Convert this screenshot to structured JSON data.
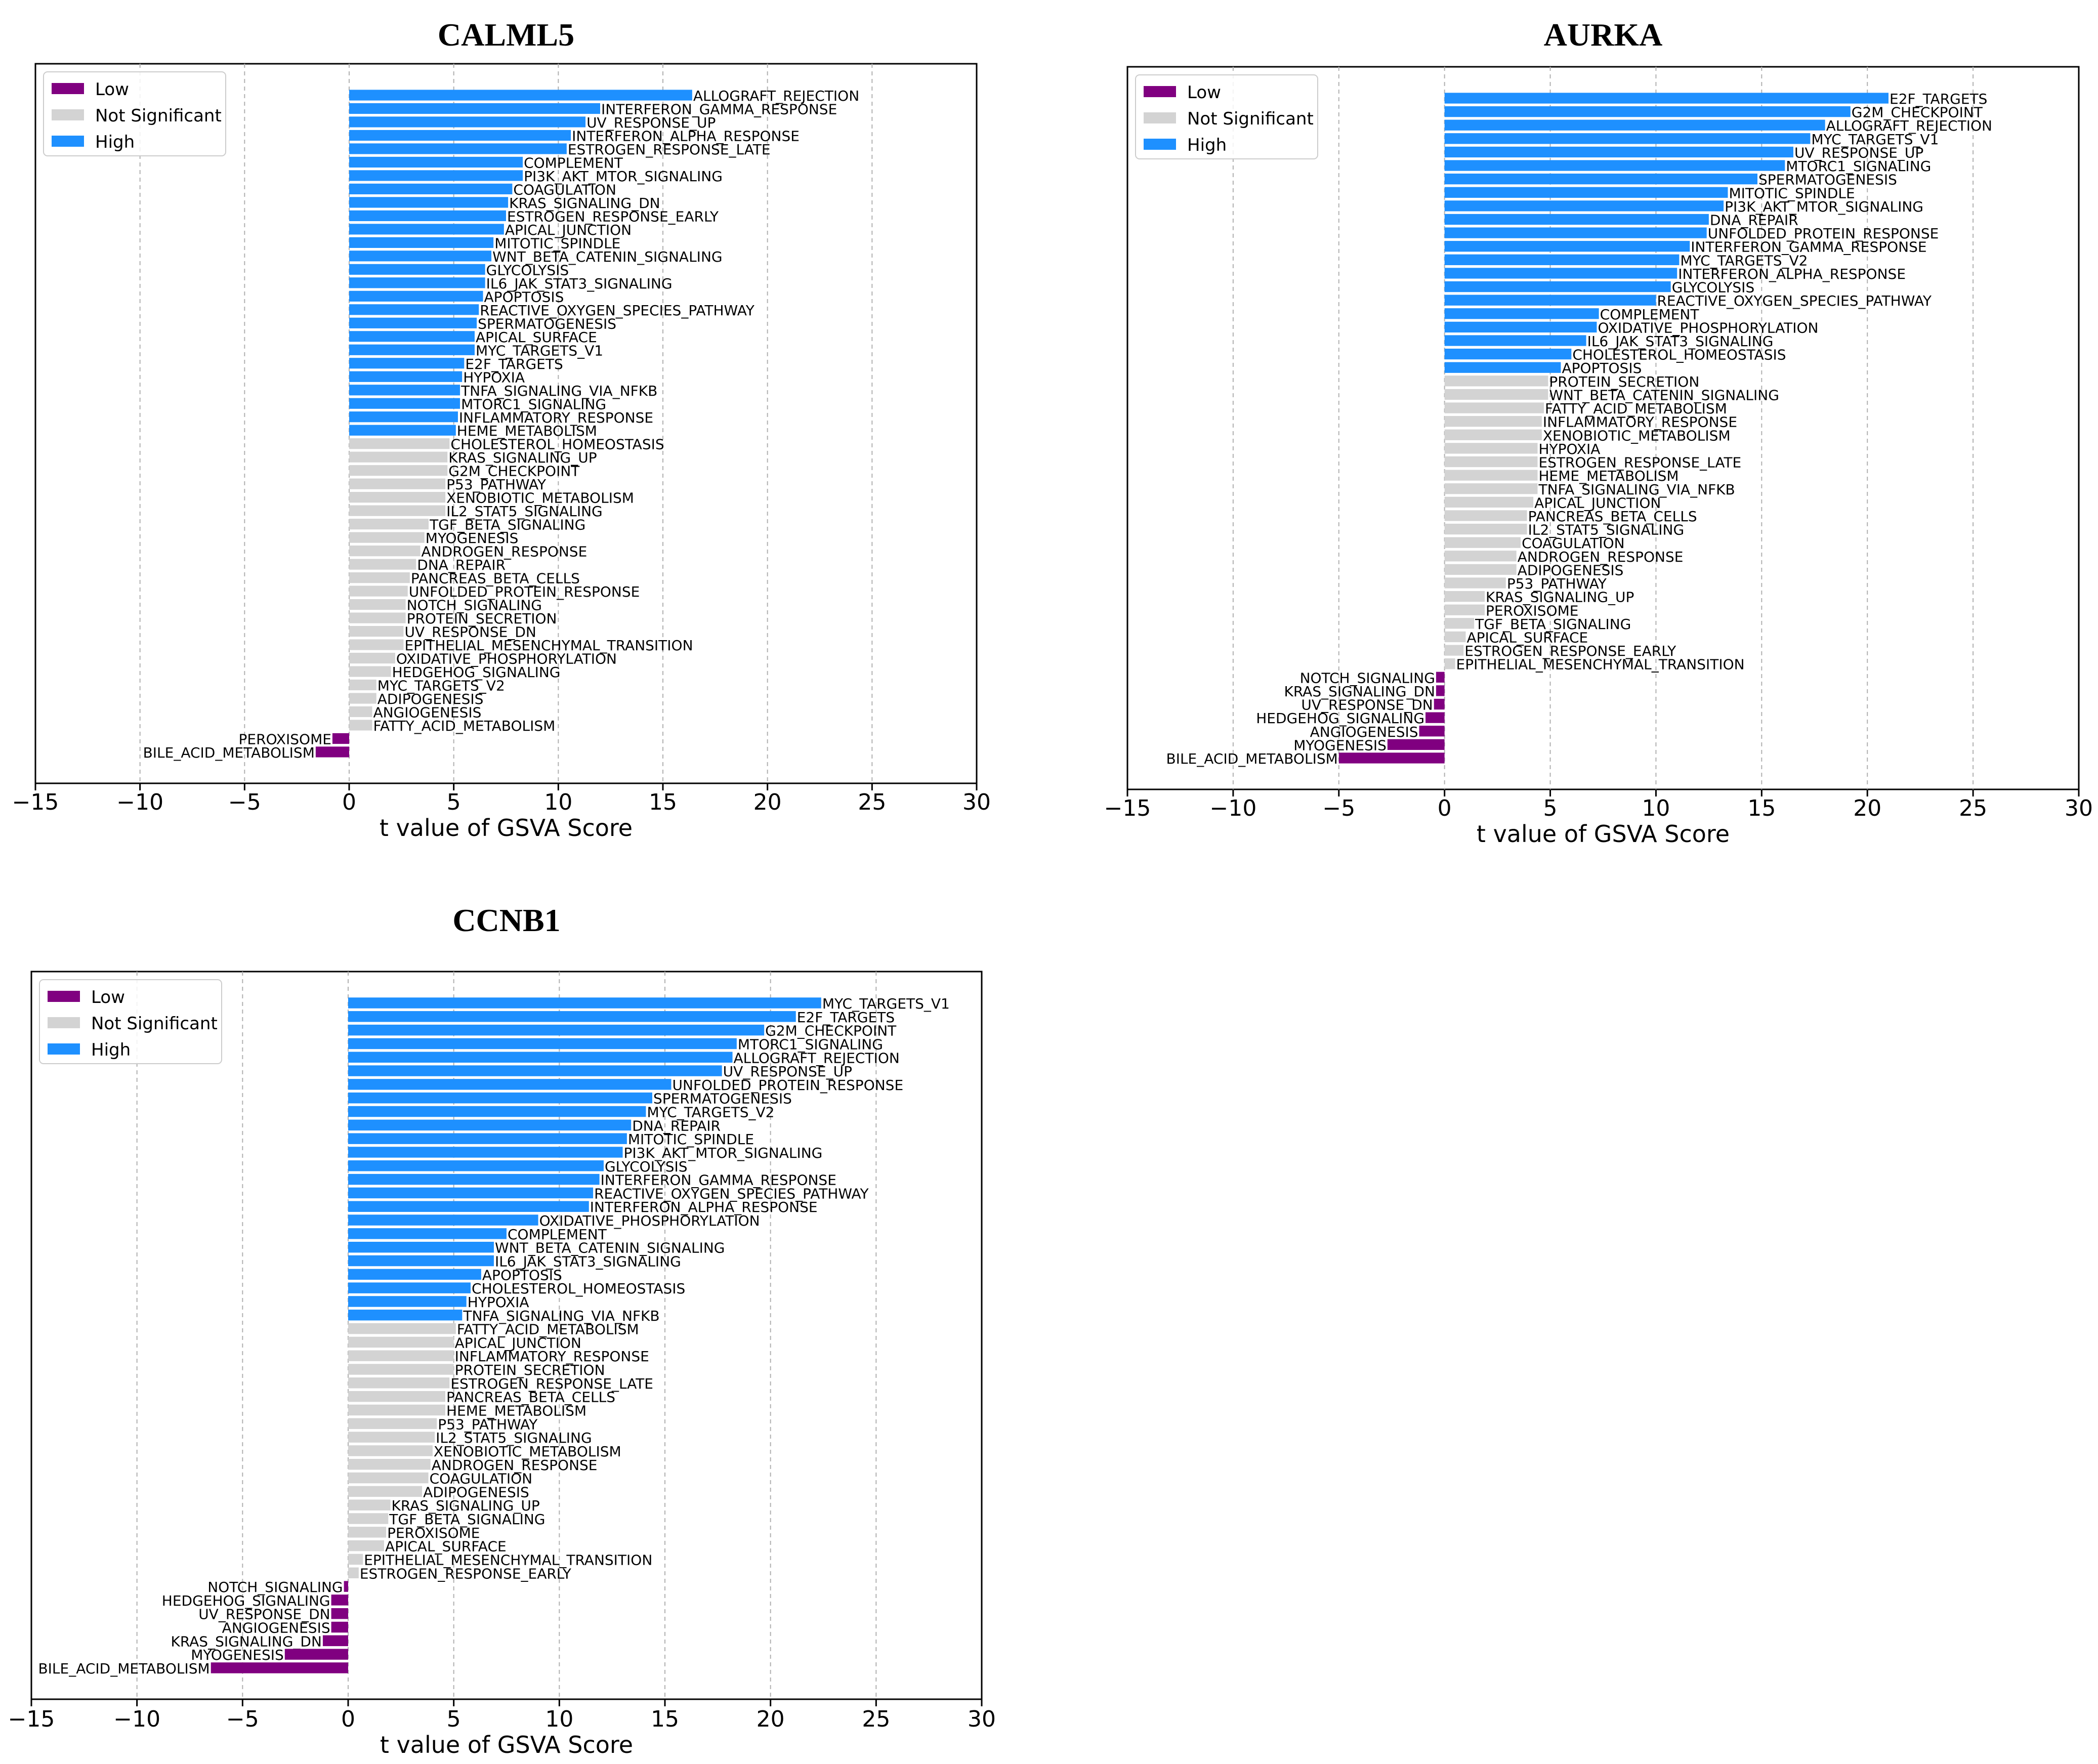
{
  "colors": {
    "low": "#800080",
    "ns": "#d3d3d3",
    "high": "#1e90ff",
    "axis": "#000000",
    "grid": "#b0b0b0"
  },
  "legend_labels": {
    "low": "Low",
    "ns": "Not Significant",
    "high": "High"
  },
  "x_ticks": [
    "−15",
    "−10",
    "−5",
    "0",
    "5",
    "10",
    "15",
    "20",
    "25",
    "30"
  ],
  "chart_data": [
    {
      "type": "bar",
      "orientation": "horizontal",
      "title": "CALML5",
      "xlabel": "t value of GSVA Score",
      "ylabel": "",
      "xlim": [
        -15,
        30
      ],
      "legend_position": "top-left",
      "grid": "vertical-dashed",
      "categories": [
        "ALLOGRAFT_REJECTION",
        "INTERFERON_GAMMA_RESPONSE",
        "UV_RESPONSE_UP",
        "INTERFERON_ALPHA_RESPONSE",
        "ESTROGEN_RESPONSE_LATE",
        "COMPLEMENT",
        "PI3K_AKT_MTOR_SIGNALING",
        "COAGULATION",
        "KRAS_SIGNALING_DN",
        "ESTROGEN_RESPONSE_EARLY",
        "APICAL_JUNCTION",
        "MITOTIC_SPINDLE",
        "WNT_BETA_CATENIN_SIGNALING",
        "GLYCOLYSIS",
        "IL6_JAK_STAT3_SIGNALING",
        "APOPTOSIS",
        "REACTIVE_OXYGEN_SPECIES_PATHWAY",
        "SPERMATOGENESIS",
        "APICAL_SURFACE",
        "MYC_TARGETS_V1",
        "E2F_TARGETS",
        "HYPOXIA",
        "TNFA_SIGNALING_VIA_NFKB",
        "MTORC1_SIGNALING",
        "INFLAMMATORY_RESPONSE",
        "HEME_METABOLISM",
        "CHOLESTEROL_HOMEOSTASIS",
        "KRAS_SIGNALING_UP",
        "G2M_CHECKPOINT",
        "P53_PATHWAY",
        "XENOBIOTIC_METABOLISM",
        "IL2_STAT5_SIGNALING",
        "TGF_BETA_SIGNALING",
        "MYOGENESIS",
        "ANDROGEN_RESPONSE",
        "DNA_REPAIR",
        "PANCREAS_BETA_CELLS",
        "UNFOLDED_PROTEIN_RESPONSE",
        "NOTCH_SIGNALING",
        "PROTEIN_SECRETION",
        "UV_RESPONSE_DN",
        "EPITHELIAL_MESENCHYMAL_TRANSITION",
        "OXIDATIVE_PHOSPHORYLATION",
        "HEDGEHOG_SIGNALING",
        "MYC_TARGETS_V2",
        "ADIPOGENESIS",
        "ANGIOGENESIS",
        "FATTY_ACID_METABOLISM",
        "PEROXISOME",
        "BILE_ACID_METABOLISM"
      ],
      "values": [
        16.4,
        12.0,
        11.3,
        10.6,
        10.4,
        8.3,
        8.3,
        7.8,
        7.6,
        7.5,
        7.4,
        6.9,
        6.8,
        6.5,
        6.5,
        6.4,
        6.2,
        6.1,
        6.0,
        6.0,
        5.5,
        5.4,
        5.3,
        5.3,
        5.2,
        5.1,
        4.8,
        4.7,
        4.7,
        4.6,
        4.6,
        4.6,
        3.8,
        3.6,
        3.4,
        3.2,
        2.9,
        2.8,
        2.7,
        2.7,
        2.6,
        2.6,
        2.2,
        2.0,
        1.3,
        1.3,
        1.1,
        1.1,
        -0.8,
        -1.6
      ],
      "groups": [
        "High",
        "High",
        "High",
        "High",
        "High",
        "High",
        "High",
        "High",
        "High",
        "High",
        "High",
        "High",
        "High",
        "High",
        "High",
        "High",
        "High",
        "High",
        "High",
        "High",
        "High",
        "High",
        "High",
        "High",
        "High",
        "High",
        "Not Significant",
        "Not Significant",
        "Not Significant",
        "Not Significant",
        "Not Significant",
        "Not Significant",
        "Not Significant",
        "Not Significant",
        "Not Significant",
        "Not Significant",
        "Not Significant",
        "Not Significant",
        "Not Significant",
        "Not Significant",
        "Not Significant",
        "Not Significant",
        "Not Significant",
        "Not Significant",
        "Not Significant",
        "Not Significant",
        "Not Significant",
        "Not Significant",
        "Low",
        "Low"
      ]
    },
    {
      "type": "bar",
      "orientation": "horizontal",
      "title": "AURKA",
      "xlabel": "t value of GSVA Score",
      "ylabel": "",
      "xlim": [
        -15,
        30
      ],
      "legend_position": "top-left",
      "grid": "vertical-dashed",
      "categories": [
        "E2F_TARGETS",
        "G2M_CHECKPOINT",
        "ALLOGRAFT_REJECTION",
        "MYC_TARGETS_V1",
        "UV_RESPONSE_UP",
        "MTORC1_SIGNALING",
        "SPERMATOGENESIS",
        "MITOTIC_SPINDLE",
        "PI3K_AKT_MTOR_SIGNALING",
        "DNA_REPAIR",
        "UNFOLDED_PROTEIN_RESPONSE",
        "INTERFERON_GAMMA_RESPONSE",
        "MYC_TARGETS_V2",
        "INTERFERON_ALPHA_RESPONSE",
        "GLYCOLYSIS",
        "REACTIVE_OXYGEN_SPECIES_PATHWAY",
        "COMPLEMENT",
        "OXIDATIVE_PHOSPHORYLATION",
        "IL6_JAK_STAT3_SIGNALING",
        "CHOLESTEROL_HOMEOSTASIS",
        "APOPTOSIS",
        "PROTEIN_SECRETION",
        "WNT_BETA_CATENIN_SIGNALING",
        "FATTY_ACID_METABOLISM",
        "INFLAMMATORY_RESPONSE",
        "XENOBIOTIC_METABOLISM",
        "HYPOXIA",
        "ESTROGEN_RESPONSE_LATE",
        "HEME_METABOLISM",
        "TNFA_SIGNALING_VIA_NFKB",
        "APICAL_JUNCTION",
        "PANCREAS_BETA_CELLS",
        "IL2_STAT5_SIGNALING",
        "COAGULATION",
        "ANDROGEN_RESPONSE",
        "ADIPOGENESIS",
        "P53_PATHWAY",
        "KRAS_SIGNALING_UP",
        "PEROXISOME",
        "TGF_BETA_SIGNALING",
        "APICAL_SURFACE",
        "ESTROGEN_RESPONSE_EARLY",
        "EPITHELIAL_MESENCHYMAL_TRANSITION",
        "NOTCH_SIGNALING",
        "KRAS_SIGNALING_DN",
        "UV_RESPONSE_DN",
        "HEDGEHOG_SIGNALING",
        "ANGIOGENESIS",
        "MYOGENESIS",
        "BILE_ACID_METABOLISM"
      ],
      "values": [
        21.0,
        19.2,
        18.0,
        17.3,
        16.5,
        16.1,
        14.8,
        13.4,
        13.2,
        12.5,
        12.4,
        11.6,
        11.1,
        11.0,
        10.7,
        10.0,
        7.3,
        7.2,
        6.7,
        6.0,
        5.5,
        4.9,
        4.9,
        4.7,
        4.6,
        4.6,
        4.4,
        4.4,
        4.4,
        4.4,
        4.2,
        3.9,
        3.9,
        3.6,
        3.4,
        3.4,
        2.9,
        1.9,
        1.9,
        1.4,
        1.0,
        0.9,
        0.5,
        -0.4,
        -0.4,
        -0.5,
        -0.9,
        -1.2,
        -2.7,
        -5.0
      ],
      "groups": [
        "High",
        "High",
        "High",
        "High",
        "High",
        "High",
        "High",
        "High",
        "High",
        "High",
        "High",
        "High",
        "High",
        "High",
        "High",
        "High",
        "High",
        "High",
        "High",
        "High",
        "High",
        "Not Significant",
        "Not Significant",
        "Not Significant",
        "Not Significant",
        "Not Significant",
        "Not Significant",
        "Not Significant",
        "Not Significant",
        "Not Significant",
        "Not Significant",
        "Not Significant",
        "Not Significant",
        "Not Significant",
        "Not Significant",
        "Not Significant",
        "Not Significant",
        "Not Significant",
        "Not Significant",
        "Not Significant",
        "Not Significant",
        "Not Significant",
        "Not Significant",
        "Low",
        "Low",
        "Low",
        "Low",
        "Low",
        "Low",
        "Low"
      ]
    },
    {
      "type": "bar",
      "orientation": "horizontal",
      "title": "CCNB1",
      "xlabel": "t value of GSVA Score",
      "ylabel": "",
      "xlim": [
        -15,
        30
      ],
      "legend_position": "top-left",
      "grid": "vertical-dashed",
      "categories": [
        "MYC_TARGETS_V1",
        "E2F_TARGETS",
        "G2M_CHECKPOINT",
        "MTORC1_SIGNALING",
        "ALLOGRAFT_REJECTION",
        "UV_RESPONSE_UP",
        "UNFOLDED_PROTEIN_RESPONSE",
        "SPERMATOGENESIS",
        "MYC_TARGETS_V2",
        "DNA_REPAIR",
        "MITOTIC_SPINDLE",
        "PI3K_AKT_MTOR_SIGNALING",
        "GLYCOLYSIS",
        "INTERFERON_GAMMA_RESPONSE",
        "REACTIVE_OXYGEN_SPECIES_PATHWAY",
        "INTERFERON_ALPHA_RESPONSE",
        "OXIDATIVE_PHOSPHORYLATION",
        "COMPLEMENT",
        "WNT_BETA_CATENIN_SIGNALING",
        "IL6_JAK_STAT3_SIGNALING",
        "APOPTOSIS",
        "CHOLESTEROL_HOMEOSTASIS",
        "HYPOXIA",
        "TNFA_SIGNALING_VIA_NFKB",
        "FATTY_ACID_METABOLISM",
        "APICAL_JUNCTION",
        "INFLAMMATORY_RESPONSE",
        "PROTEIN_SECRETION",
        "ESTROGEN_RESPONSE_LATE",
        "PANCREAS_BETA_CELLS",
        "HEME_METABOLISM",
        "P53_PATHWAY",
        "IL2_STAT5_SIGNALING",
        "XENOBIOTIC_METABOLISM",
        "ANDROGEN_RESPONSE",
        "COAGULATION",
        "ADIPOGENESIS",
        "KRAS_SIGNALING_UP",
        "TGF_BETA_SIGNALING",
        "PEROXISOME",
        "APICAL_SURFACE",
        "EPITHELIAL_MESENCHYMAL_TRANSITION",
        "ESTROGEN_RESPONSE_EARLY",
        "NOTCH_SIGNALING",
        "HEDGEHOG_SIGNALING",
        "UV_RESPONSE_DN",
        "ANGIOGENESIS",
        "KRAS_SIGNALING_DN",
        "MYOGENESIS",
        "BILE_ACID_METABOLISM"
      ],
      "values": [
        22.4,
        21.2,
        19.7,
        18.4,
        18.2,
        17.7,
        15.3,
        14.4,
        14.1,
        13.4,
        13.2,
        13.0,
        12.1,
        11.9,
        11.6,
        11.4,
        9.0,
        7.5,
        6.9,
        6.9,
        6.3,
        5.8,
        5.6,
        5.4,
        5.1,
        5.0,
        5.0,
        5.0,
        4.8,
        4.6,
        4.6,
        4.2,
        4.1,
        4.0,
        3.9,
        3.8,
        3.5,
        2.0,
        1.9,
        1.8,
        1.7,
        0.7,
        0.5,
        -0.2,
        -0.8,
        -0.8,
        -0.8,
        -1.2,
        -3.0,
        -6.5
      ],
      "groups": [
        "High",
        "High",
        "High",
        "High",
        "High",
        "High",
        "High",
        "High",
        "High",
        "High",
        "High",
        "High",
        "High",
        "High",
        "High",
        "High",
        "High",
        "High",
        "High",
        "High",
        "High",
        "High",
        "High",
        "High",
        "Not Significant",
        "Not Significant",
        "Not Significant",
        "Not Significant",
        "Not Significant",
        "Not Significant",
        "Not Significant",
        "Not Significant",
        "Not Significant",
        "Not Significant",
        "Not Significant",
        "Not Significant",
        "Not Significant",
        "Not Significant",
        "Not Significant",
        "Not Significant",
        "Not Significant",
        "Not Significant",
        "Not Significant",
        "Low",
        "Low",
        "Low",
        "Low",
        "Low",
        "Low",
        "Low"
      ]
    }
  ]
}
